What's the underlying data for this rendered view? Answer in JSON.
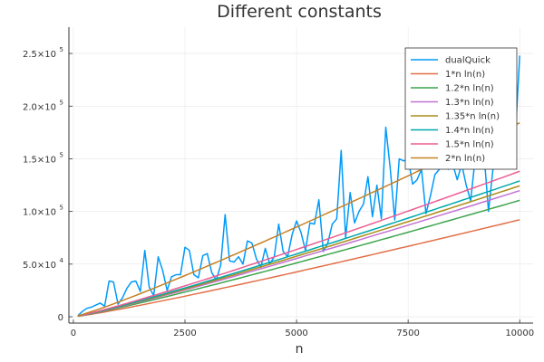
{
  "chart_data": {
    "type": "line",
    "title": "Different constants",
    "xlabel": "n",
    "ylabel": "",
    "xlim": [
      -100,
      10300
    ],
    "ylim": [
      -6000,
      275000
    ],
    "grid": true,
    "legend_position": "top-right",
    "x_ticks": [
      {
        "value": 0,
        "label": "0"
      },
      {
        "value": 2500,
        "label": "2500"
      },
      {
        "value": 5000,
        "label": "5000"
      },
      {
        "value": 7500,
        "label": "7500"
      },
      {
        "value": 10000,
        "label": "10000"
      }
    ],
    "y_ticks": [
      {
        "value": 0,
        "label": "0"
      },
      {
        "value": 50000,
        "label": "5.0×10",
        "exp": "4"
      },
      {
        "value": 100000,
        "label": "1.0×10",
        "exp": "5"
      },
      {
        "value": 150000,
        "label": "1.5×10",
        "exp": "5"
      },
      {
        "value": 200000,
        "label": "2.0×10",
        "exp": "5"
      },
      {
        "value": 250000,
        "label": "2.5×10",
        "exp": "5"
      }
    ],
    "series": [
      {
        "name": "dualQuick",
        "color": "#009af9",
        "x": [
          100,
          200,
          300,
          400,
          500,
          600,
          700,
          800,
          900,
          1000,
          1100,
          1200,
          1300,
          1400,
          1500,
          1600,
          1700,
          1800,
          1900,
          2000,
          2100,
          2200,
          2300,
          2400,
          2500,
          2600,
          2700,
          2800,
          2900,
          3000,
          3100,
          3200,
          3300,
          3400,
          3500,
          3600,
          3700,
          3800,
          3900,
          4000,
          4100,
          4200,
          4300,
          4400,
          4500,
          4600,
          4700,
          4800,
          4900,
          5000,
          5100,
          5200,
          5300,
          5400,
          5500,
          5600,
          5700,
          5800,
          5900,
          6000,
          6100,
          6200,
          6300,
          6400,
          6500,
          6600,
          6700,
          6800,
          6900,
          7000,
          7100,
          7200,
          7300,
          7400,
          7500,
          7600,
          7700,
          7800,
          7900,
          8000,
          8100,
          8200,
          8300,
          8400,
          8500,
          8600,
          8700,
          8800,
          8900,
          9000,
          9100,
          9200,
          9300,
          9400,
          9500,
          9600,
          9700,
          9800,
          9900,
          10000
        ],
        "values": [
          1000,
          5000,
          8000,
          9000,
          11000,
          13000,
          10000,
          34000,
          33000,
          12000,
          18000,
          27000,
          33000,
          34000,
          24000,
          63000,
          28000,
          20000,
          57000,
          44000,
          25000,
          38000,
          40000,
          40000,
          66000,
          63000,
          40000,
          37000,
          58000,
          60000,
          42000,
          35000,
          49000,
          97000,
          53000,
          52000,
          57000,
          50000,
          72000,
          70000,
          55000,
          47000,
          65000,
          50000,
          57000,
          88000,
          62000,
          57000,
          78000,
          91000,
          80000,
          63000,
          89000,
          88000,
          111000,
          62000,
          70000,
          88000,
          93000,
          158000,
          75000,
          118000,
          89000,
          100000,
          107000,
          133000,
          95000,
          125000,
          93000,
          180000,
          140000,
          92000,
          150000,
          148000,
          150000,
          126000,
          130000,
          140000,
          98000,
          115000,
          135000,
          140000,
          155000,
          140000,
          145000,
          130000,
          145000,
          125000,
          110000,
          150000,
          152000,
          155000,
          100000,
          140000,
          150000,
          160000,
          180000,
          165000,
          170000,
          248000
        ]
      },
      {
        "name": "1*n ln(n)",
        "color": "#e26f46",
        "coef": 1.0
      },
      {
        "name": "1.2*n ln(n)",
        "color": "#3da44d",
        "coef": 1.2
      },
      {
        "name": "1.3*n ln(n)",
        "color": "#c271d2",
        "coef": 1.3
      },
      {
        "name": "1.35*n ln(n)",
        "color": "#ac8d18",
        "coef": 1.35
      },
      {
        "name": "1.4*n ln(n)",
        "color": "#00a9ad",
        "coef": 1.4
      },
      {
        "name": "1.5*n ln(n)",
        "color": "#ed5d92",
        "coef": 1.5
      },
      {
        "name": "2*n ln(n)",
        "color": "#c68125",
        "coef": 2.0
      }
    ]
  }
}
